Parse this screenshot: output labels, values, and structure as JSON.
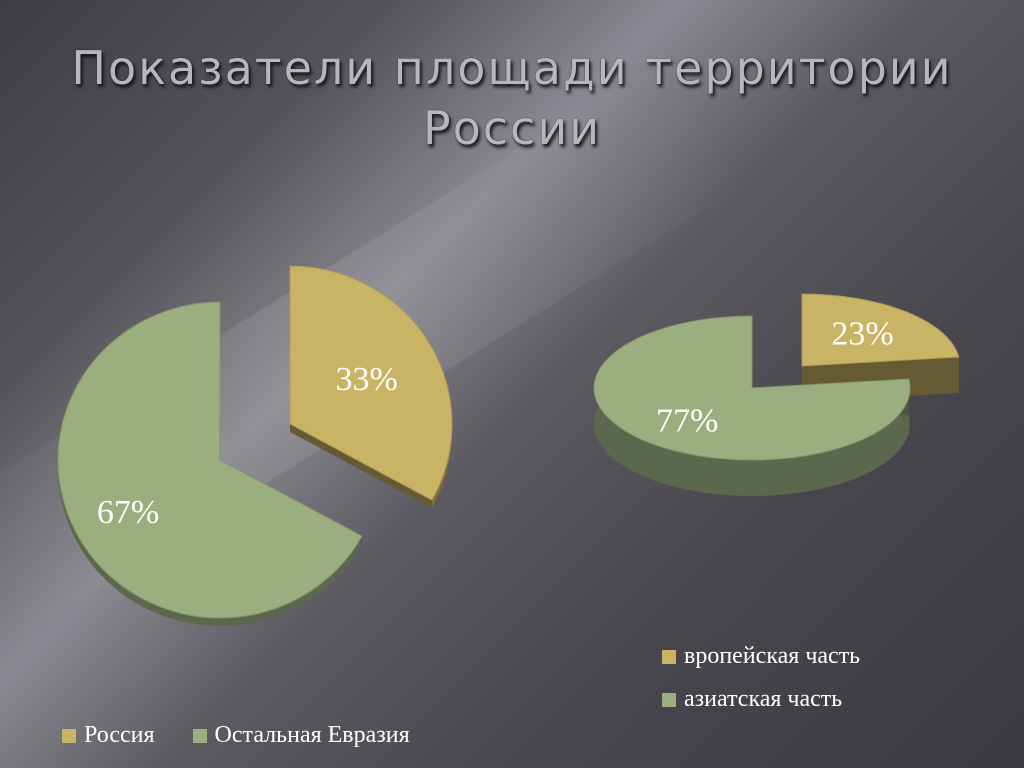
{
  "slide": {
    "title": "Показатели площади территории России"
  },
  "chart_data": [
    {
      "type": "pie",
      "categories": [
        "Россия",
        "Остальная Евразия"
      ],
      "values": [
        33,
        67
      ],
      "data_labels": [
        "33%",
        "67%"
      ],
      "colors": [
        "#c9b466",
        "#9aae80"
      ],
      "legend": "bottom",
      "exploded": true,
      "style": "3d"
    },
    {
      "type": "pie",
      "categories": [
        "вропейская часть",
        "азиатская часть"
      ],
      "values": [
        23,
        77
      ],
      "data_labels": [
        "23%",
        "77%"
      ],
      "colors": [
        "#c9b466",
        "#9aae80"
      ],
      "legend": "bottom-right",
      "exploded": true,
      "style": "3d"
    }
  ]
}
